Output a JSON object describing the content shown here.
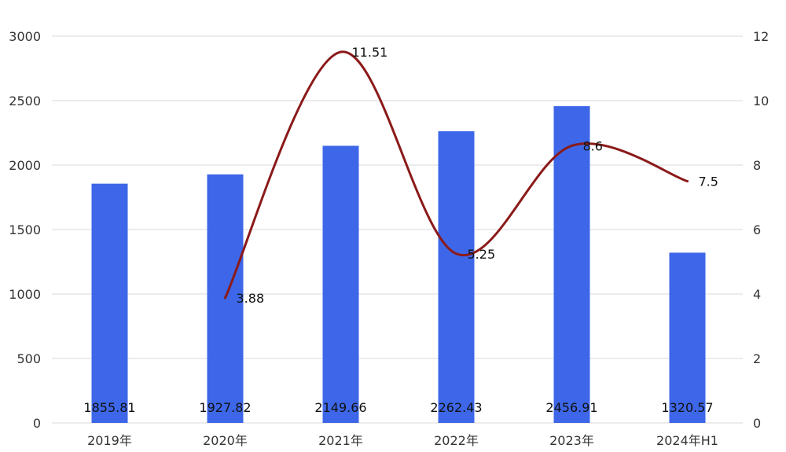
{
  "chart_data": {
    "type": "bar",
    "categories": [
      "2019年",
      "2020年",
      "2021年",
      "2022年",
      "2023年",
      "2024年H1"
    ],
    "series": [
      {
        "type": "bar",
        "axis": "left",
        "values": [
          1855.81,
          1927.82,
          2149.66,
          2262.43,
          2456.91,
          1320.57
        ],
        "labels": [
          "1855.81",
          "1927.82",
          "2149.66",
          "2262.43",
          "2456.91",
          "1320.57"
        ],
        "color": "#3d67e8"
      },
      {
        "type": "line",
        "axis": "right",
        "smooth": true,
        "values": [
          null,
          3.88,
          11.51,
          5.25,
          8.6,
          7.5
        ],
        "labels": [
          "",
          "3.88",
          "11.51",
          "5.25",
          "8.6",
          "7.5"
        ],
        "color": "#8b1a1a"
      }
    ],
    "y_left": {
      "min": 0,
      "max": 3000,
      "ticks": [
        "0",
        "500",
        "1000",
        "1500",
        "2000",
        "2500",
        "3000"
      ]
    },
    "y_right": {
      "min": 0,
      "max": 12,
      "ticks": [
        "0",
        "2",
        "4",
        "6",
        "8",
        "10",
        "12"
      ]
    },
    "grid": true,
    "legend": "none"
  }
}
